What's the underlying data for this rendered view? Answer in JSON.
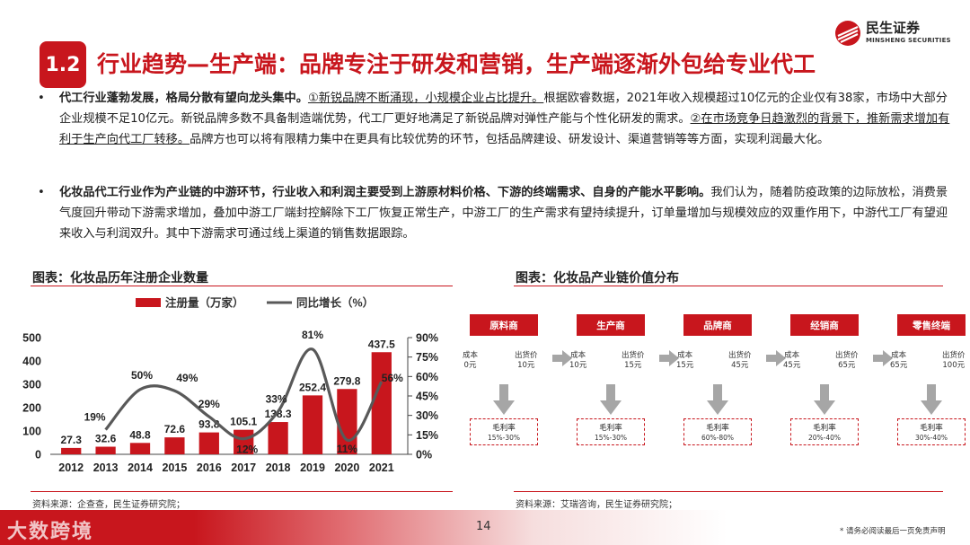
{
  "header": {
    "section_number": "1.2",
    "title": "行业趋势—生产端：品牌专注于研发和营销，生产端逐渐外包给专业代工",
    "logo_cn": "民生证券",
    "logo_en": "MINSHENG SECURITIES"
  },
  "bullets": [
    {
      "bold": "代工行业蓬勃发展，格局分散有望向龙头集中。",
      "underline1": "①新锐品牌不断涌现，小规模企业占比提升。",
      "text1": "根据欧睿数据，2021年收入规模超过10亿元的企业仅有38家，市场中大部分企业规模不足10亿元。新锐品牌多数不具备制造端优势，代工厂更好地满足了新锐品牌对弹性产能与个性化研发的需求。",
      "underline2": "②在市场竞争日趋激烈的背景下，推新需求增加有利于生产向代工厂转移。",
      "text2": "品牌方也可以将有限精力集中在更具有比较优势的环节，包括品牌建设、研发设计、渠道营销等等方面，实现利润最大化。"
    },
    {
      "bold": "化妆品代工行业作为产业链的中游环节，行业收入和利润主要受到上游原材料价格、下游的终端需求、自身的产能水平影响。",
      "text1": "我们认为，随着防疫政策的边际放松，消费景气度回升带动下游需求增加，叠加中游工厂端封控解除下工厂恢复正常生产，中游工厂的生产需求有望持续提升，订单量增加与规模效应的双重作用下，中游代工厂有望迎来收入与利润双升。其中下游需求可通过线上渠道的销售数据跟踪。"
    }
  ],
  "left_panel": {
    "title": "图表：化妆品历年注册企业数量",
    "source": "资料来源：企查查，民生证券研究院；"
  },
  "right_panel": {
    "title": "图表：化妆品产业链价值分布",
    "source": "资料来源：艾瑞咨询，民生证券研究院；"
  },
  "chart_data": {
    "type": "bar",
    "categories": [
      "2012",
      "2013",
      "2014",
      "2015",
      "2016",
      "2017",
      "2018",
      "2019",
      "2020",
      "2021"
    ],
    "series": [
      {
        "name": "注册量（万家）",
        "kind": "bar",
        "axis": "left",
        "color": "#c8161d",
        "values": [
          27.3,
          32.6,
          48.8,
          72.6,
          93.8,
          105.1,
          138.3,
          252.4,
          279.8,
          437.5
        ],
        "labels": [
          "27.3",
          "32.6",
          "48.8",
          "72.6",
          "93.8",
          "105.1",
          "138.3",
          "252.4",
          "279.8",
          "437.5"
        ]
      },
      {
        "name": "同比增长（%）",
        "kind": "line",
        "axis": "right",
        "color": "#595959",
        "values": [
          null,
          19,
          50,
          49,
          29,
          12,
          33,
          81,
          11,
          56
        ],
        "labels": [
          "",
          "19%",
          "50%",
          "49%",
          "29%",
          "12%",
          "33%",
          "81%",
          "11%",
          "56%"
        ]
      }
    ],
    "yleft": {
      "min": 0,
      "max": 500,
      "ticks": [
        "0",
        "100",
        "200",
        "300",
        "400",
        "500"
      ]
    },
    "yright": {
      "min": 0,
      "max": 90,
      "ticks": [
        "0%",
        "15%",
        "30%",
        "45%",
        "60%",
        "75%",
        "90%"
      ]
    },
    "legend_position": "top",
    "grid": false
  },
  "value_chain": {
    "stages": [
      {
        "name": "原料商",
        "cost_label": "成本",
        "cost": "0元",
        "price_label": "出货价",
        "price": "10元",
        "margin_label": "毛利率",
        "margin": "15%-30%"
      },
      {
        "name": "生产商",
        "cost_label": "成本",
        "cost": "10元",
        "price_label": "出货价",
        "price": "15元",
        "margin_label": "毛利率",
        "margin": "15%-30%"
      },
      {
        "name": "品牌商",
        "cost_label": "成本",
        "cost": "15元",
        "price_label": "出货价",
        "price": "45元",
        "margin_label": "毛利率",
        "margin": "60%-80%"
      },
      {
        "name": "经销商",
        "cost_label": "成本",
        "cost": "45元",
        "price_label": "出货价",
        "price": "65元",
        "margin_label": "毛利率",
        "margin": "20%-40%"
      },
      {
        "name": "零售终端",
        "cost_label": "成本",
        "cost": "65元",
        "price_label": "出货价",
        "price": "100元",
        "margin_label": "毛利率",
        "margin": "30%-40%"
      }
    ],
    "colors": {
      "accent": "#c8161d",
      "arrow": "#a6a6a6"
    }
  },
  "footer": {
    "page_number": "14",
    "disclaimer": "* 请务必阅读最后一页免责声明",
    "watermark": "大数跨境"
  }
}
